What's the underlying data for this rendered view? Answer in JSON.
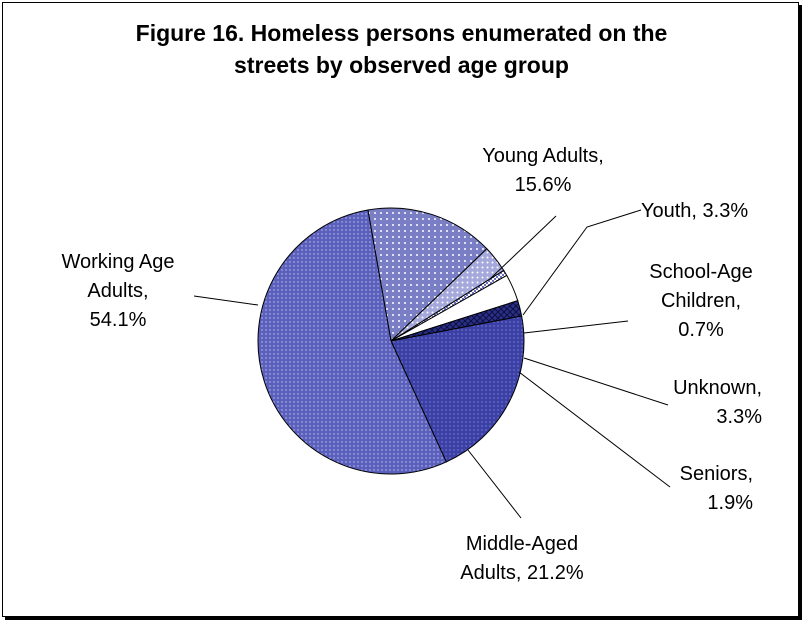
{
  "chart_data": {
    "type": "pie",
    "title_lines": [
      "Figure 16. Homeless persons enumerated on the",
      "streets by observed age group"
    ],
    "slices": [
      {
        "name": "Young Adults",
        "value": 15.6,
        "label_lines": [
          "Young Adults,",
          "15.6%"
        ],
        "color": "#7a7ec4",
        "pattern": "dots"
      },
      {
        "name": "Youth",
        "value": 3.3,
        "label_lines": [
          "Youth, 3.3%"
        ],
        "color": "#a5a8da",
        "pattern": "dots-light"
      },
      {
        "name": "School-Age Children",
        "value": 0.7,
        "label_lines": [
          "School-Age",
          "Children,",
          "0.7%"
        ],
        "color": "#8f93cf",
        "pattern": "checker"
      },
      {
        "name": "Unknown",
        "value": 3.3,
        "label_lines": [
          "Unknown,",
          "3.3%"
        ],
        "color": "#ffffff",
        "pattern": "none"
      },
      {
        "name": "Seniors",
        "value": 1.9,
        "label_lines": [
          "Seniors,",
          "1.9%"
        ],
        "color": "#2a2f87",
        "pattern": "crosshatch"
      },
      {
        "name": "Middle-Aged Adults",
        "value": 21.2,
        "label_lines": [
          "Middle-Aged",
          "Adults, 21.2%"
        ],
        "color": "#3b40a6",
        "pattern": "fine-dots"
      },
      {
        "name": "Working Age Adults",
        "value": 54.1,
        "label_lines": [
          "Working Age",
          "Adults,",
          "54.1%"
        ],
        "color": "#5b60bd",
        "pattern": "fine-dots-light"
      }
    ],
    "start_angle_deg": -10,
    "legend": "none"
  }
}
